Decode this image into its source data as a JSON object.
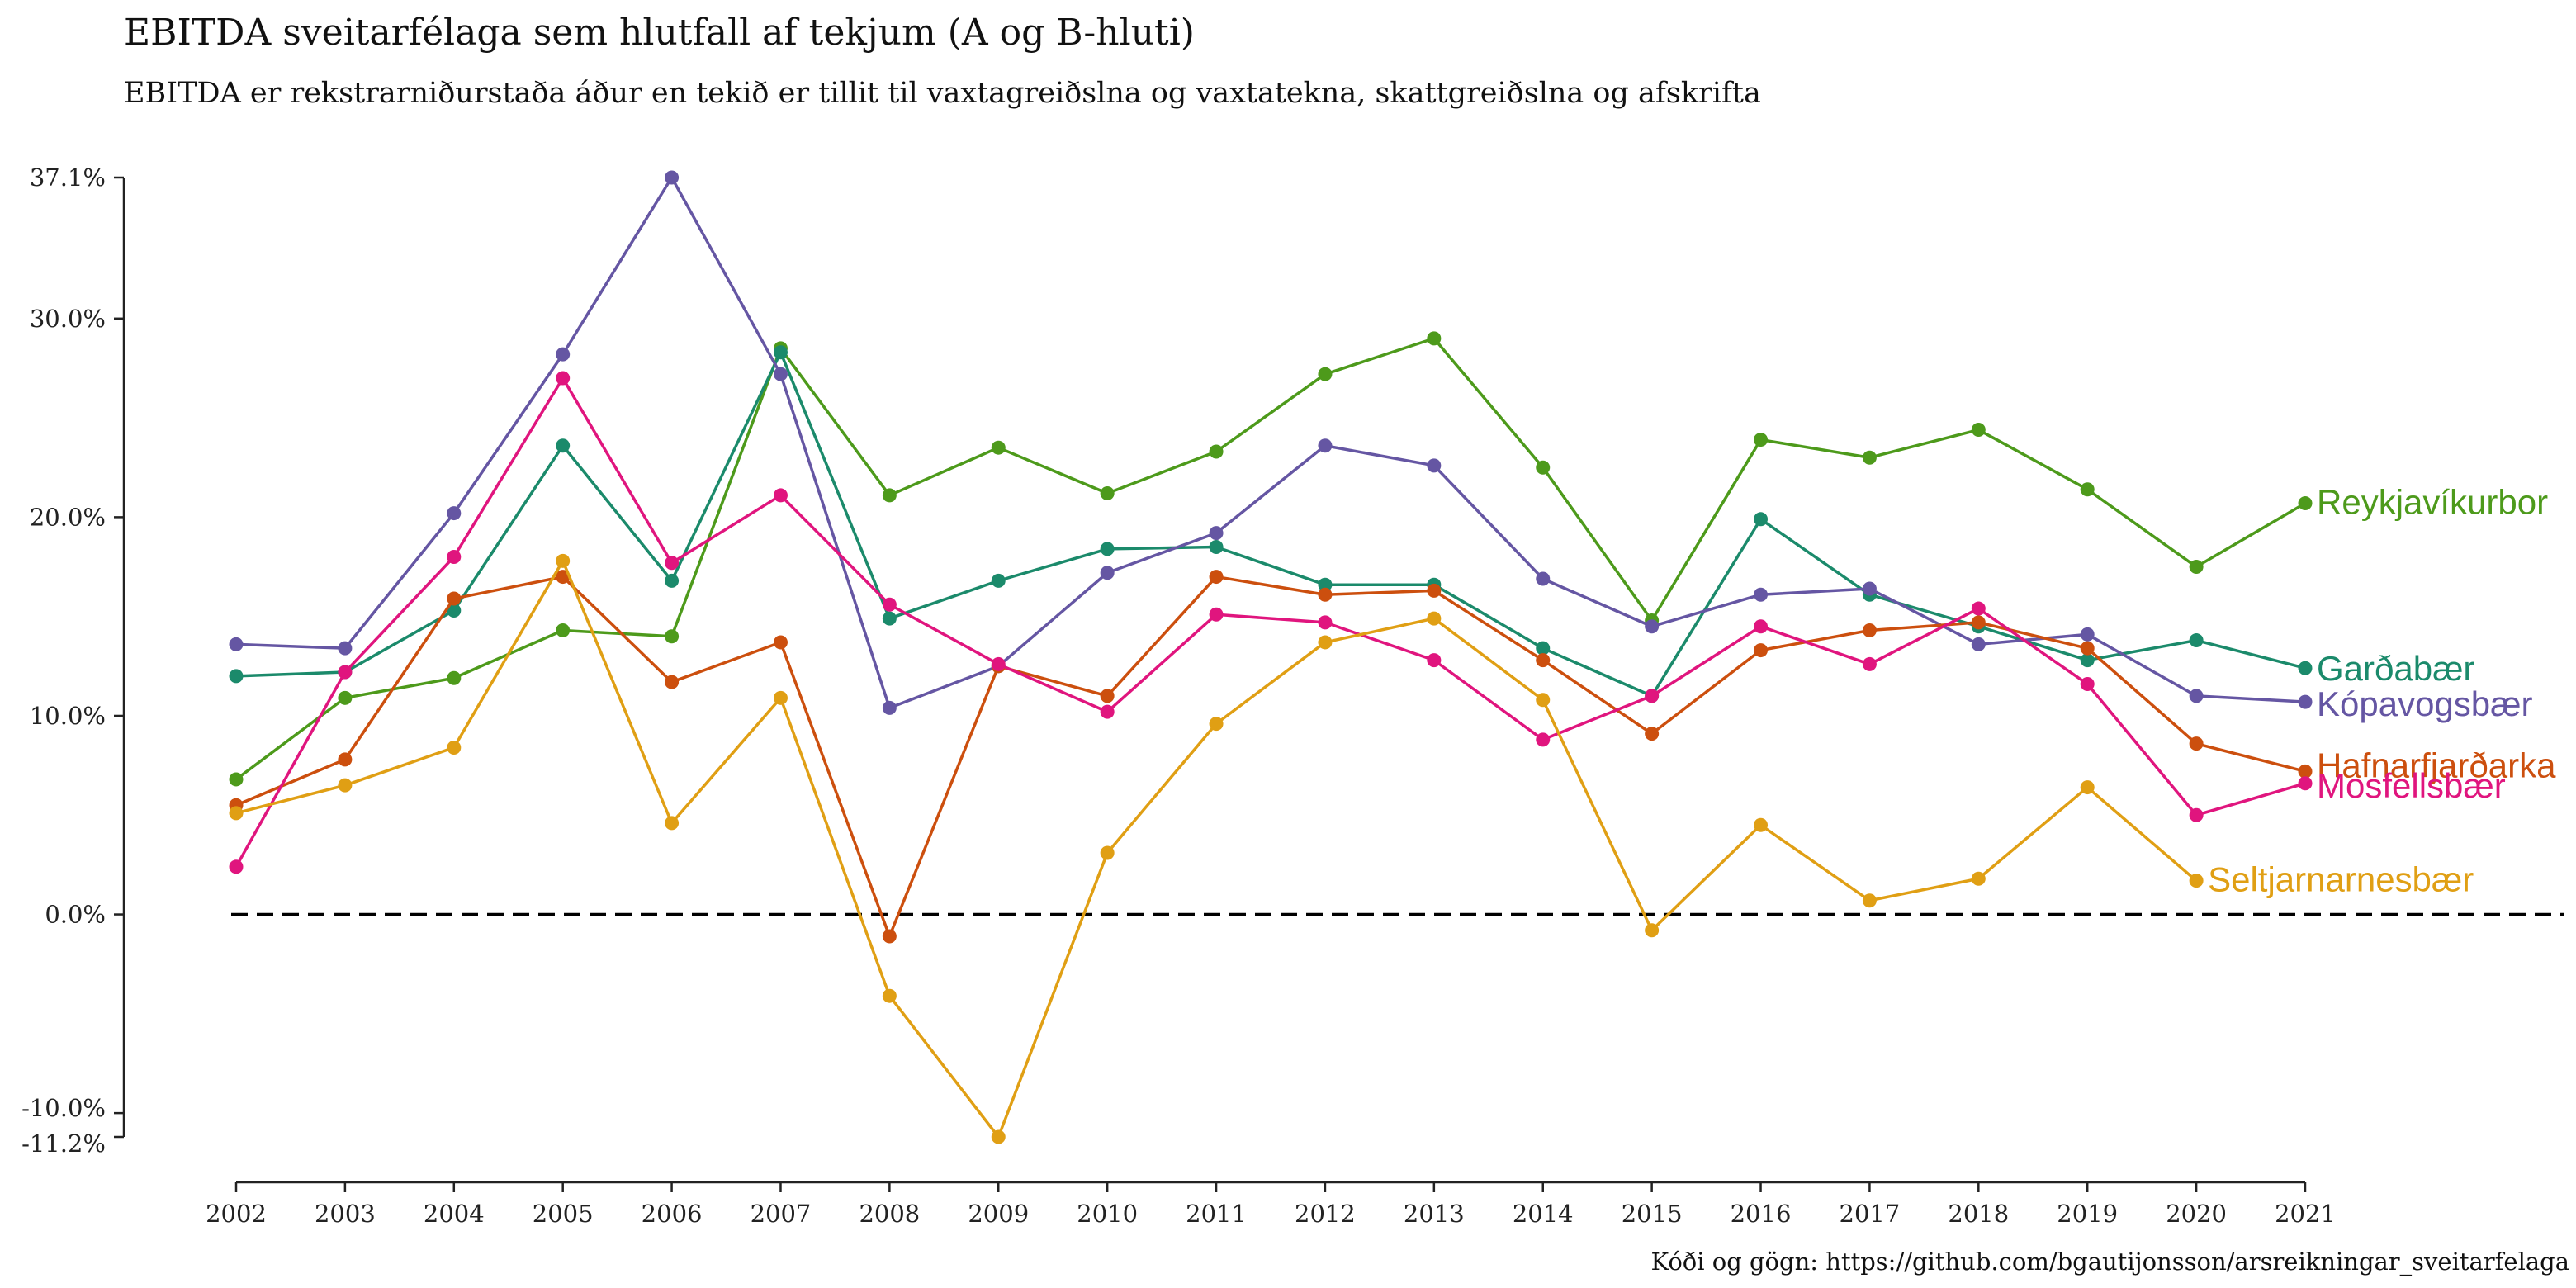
{
  "chart_data": {
    "type": "line",
    "title": "EBITDA sveitarfélaga sem hlutfall af tekjum (A og B-hluti)",
    "subtitle": "EBITDA er rekstrarniðurstaða áður en tekið er tillit til vaxtagreiðslna og vaxtatekna, skattgreiðslna og afskrifta",
    "caption": "Kóði og gögn: https://github.com/bgautijonsson/arsreikningar_sveitarfelaga",
    "xlabel": "",
    "ylabel": "",
    "x": [
      2002,
      2003,
      2004,
      2005,
      2006,
      2007,
      2008,
      2009,
      2010,
      2011,
      2012,
      2013,
      2014,
      2015,
      2016,
      2017,
      2018,
      2019,
      2020,
      2021
    ],
    "x_tick_labels": [
      "2002",
      "2003",
      "2004",
      "2005",
      "2006",
      "2007",
      "2008",
      "2009",
      "2010",
      "2011",
      "2012",
      "2013",
      "2014",
      "2015",
      "2016",
      "2017",
      "2018",
      "2019",
      "2020",
      "2021"
    ],
    "y_ticks": [
      -11.2,
      -10.0,
      0.0,
      10.0,
      20.0,
      30.0,
      37.1
    ],
    "y_tick_labels": [
      "-11.2%",
      "-10.0%",
      "0.0%",
      "10.0%",
      "20.0%",
      "30.0%",
      "37.1%"
    ],
    "ylim": [
      -11.2,
      37.1
    ],
    "reference_line": {
      "y": 0,
      "style": "dashed"
    },
    "grid": false,
    "legend": "direct labels at line ends",
    "series": [
      {
        "name": "Reykjavíkurborg",
        "label": "Reykjavíkurbor",
        "color": "#4d9a1b",
        "values": [
          6.8,
          10.9,
          11.9,
          14.3,
          14.0,
          28.5,
          21.1,
          23.5,
          21.2,
          23.3,
          27.2,
          29.0,
          22.5,
          14.8,
          23.9,
          23.0,
          24.4,
          21.4,
          17.5,
          20.7
        ]
      },
      {
        "name": "Garðabær",
        "label": "Garðabær",
        "color": "#1b8a6b",
        "values": [
          12.0,
          12.2,
          15.3,
          23.6,
          16.8,
          28.3,
          14.9,
          16.8,
          18.4,
          18.5,
          16.6,
          16.6,
          13.4,
          11.0,
          19.9,
          16.1,
          14.5,
          12.8,
          13.8,
          12.4
        ]
      },
      {
        "name": "Kópavogsbær",
        "label": "Kópavogsbær",
        "color": "#6556a3",
        "values": [
          13.6,
          13.4,
          20.2,
          28.2,
          37.1,
          27.2,
          10.4,
          12.5,
          17.2,
          19.2,
          23.6,
          22.6,
          16.9,
          14.5,
          16.1,
          16.4,
          13.6,
          14.1,
          11.0,
          10.7
        ]
      },
      {
        "name": "Hafnarfjarðarkaupstaður",
        "label": "Hafnarfjarðarka",
        "color": "#cc4f0e",
        "values": [
          5.5,
          7.8,
          15.9,
          17.0,
          11.7,
          13.7,
          -1.1,
          12.5,
          11.0,
          17.0,
          16.1,
          16.3,
          12.8,
          9.1,
          13.3,
          14.3,
          14.7,
          13.4,
          8.6,
          7.2
        ]
      },
      {
        "name": "Mosfellsbær",
        "label": "Mosfellsbær",
        "color": "#e0157e",
        "values": [
          2.4,
          12.2,
          18.0,
          27.0,
          17.7,
          21.1,
          15.6,
          12.6,
          10.2,
          15.1,
          14.7,
          12.8,
          8.8,
          11.0,
          14.5,
          12.6,
          15.4,
          11.6,
          5.0,
          6.6
        ]
      },
      {
        "name": "Seltjarnarnesbær",
        "label": "Seltjarnarnesbær",
        "color": "#e09f14",
        "values": [
          5.1,
          6.5,
          8.4,
          17.8,
          4.6,
          10.9,
          -4.1,
          -11.2,
          3.1,
          9.6,
          13.7,
          14.9,
          10.8,
          -0.8,
          4.5,
          0.7,
          1.8,
          6.4,
          1.7,
          null
        ]
      }
    ]
  }
}
